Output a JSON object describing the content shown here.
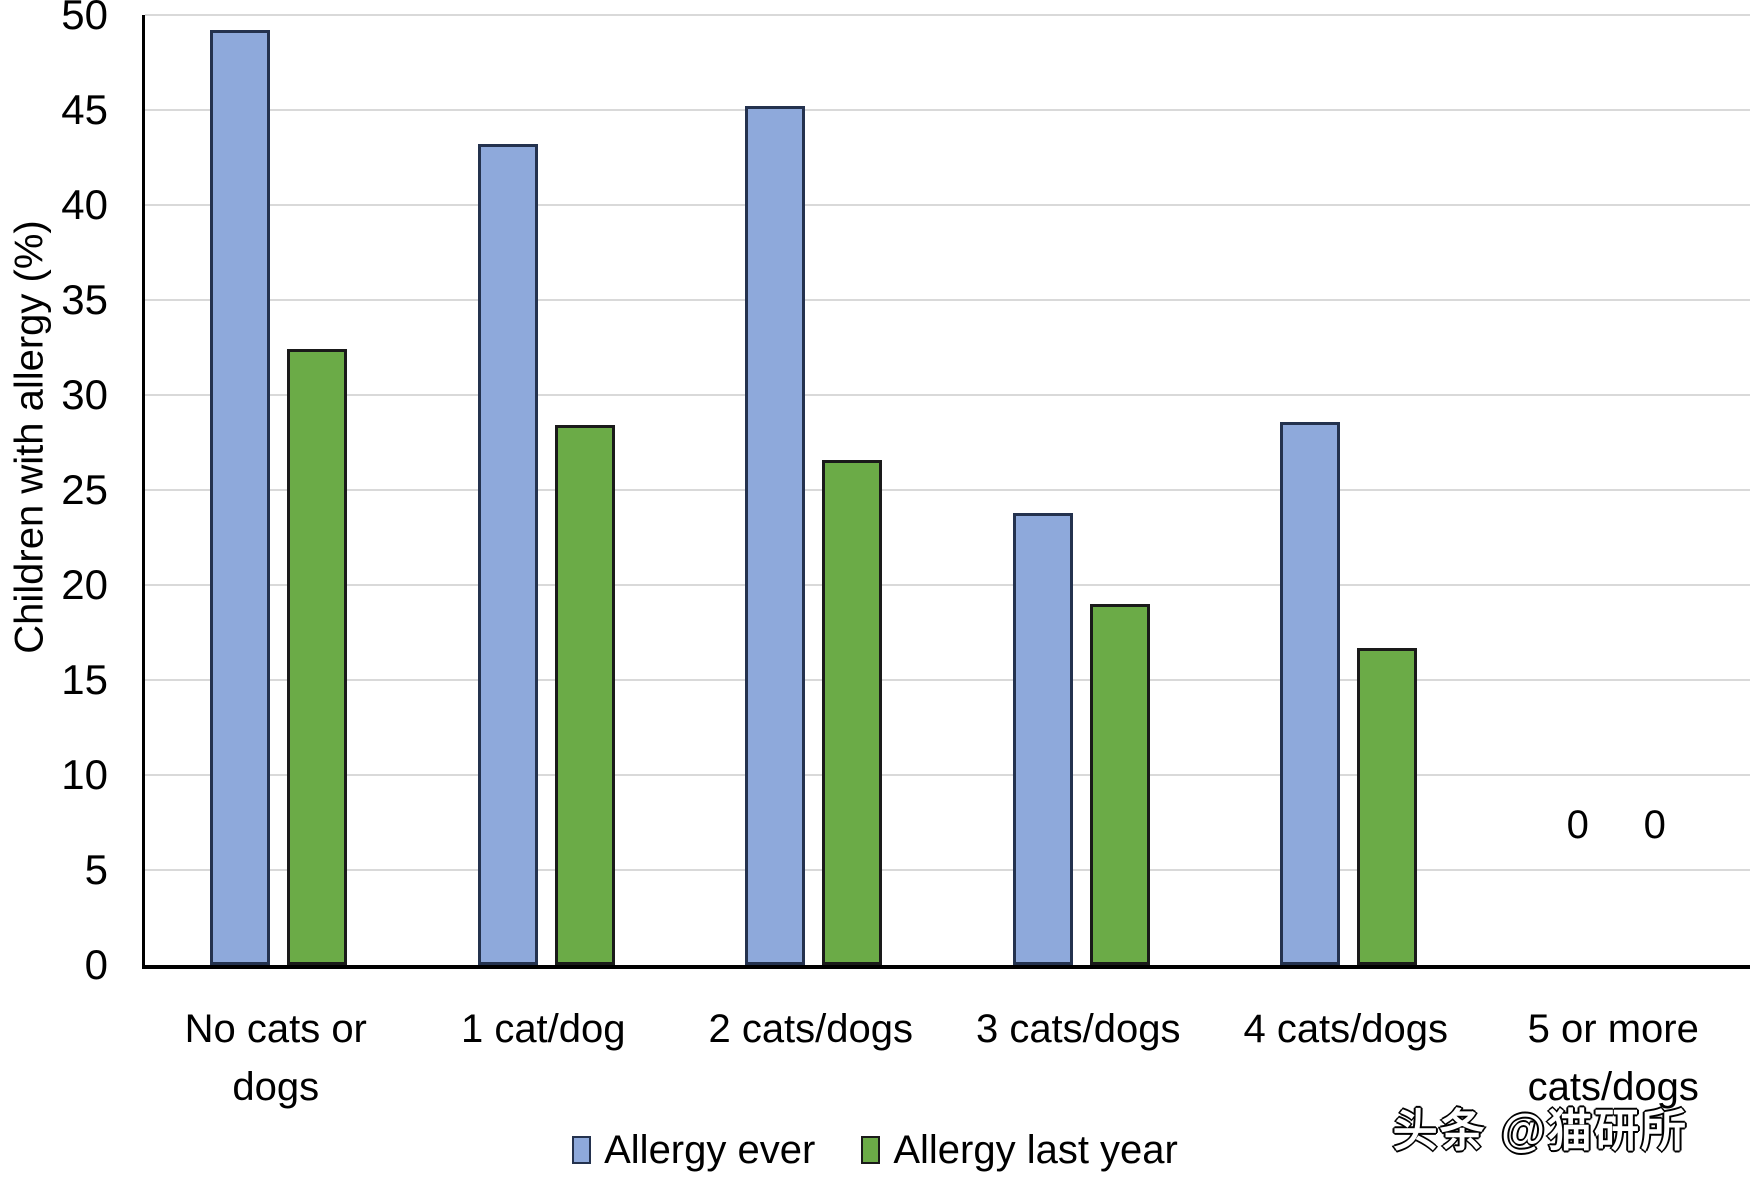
{
  "chart_data": {
    "type": "bar",
    "title": "",
    "xlabel": "",
    "ylabel": "Children with allergy (%)",
    "ylim": [
      0,
      50
    ],
    "yticks": [
      0,
      5,
      10,
      15,
      20,
      25,
      30,
      35,
      40,
      45,
      50
    ],
    "grid": true,
    "legend_position": "bottom",
    "categories": [
      "No cats or dogs",
      "1 cat/dog",
      "2 cats/dogs",
      "3 cats/dogs",
      "4 cats/dogs",
      "5 or more cats/dogs"
    ],
    "series": [
      {
        "name": "Allergy ever",
        "fill": "#8EA9DB",
        "border": "#24324E",
        "values": [
          49.2,
          43.2,
          45.2,
          23.8,
          28.6,
          0
        ]
      },
      {
        "name": "Allergy last year",
        "fill": "#6BAB47",
        "border": "#1A1A1A",
        "values": [
          32.4,
          28.4,
          26.6,
          19.0,
          16.7,
          0
        ]
      }
    ],
    "zero_value_label": "0"
  },
  "colors": {
    "axis": "#000000",
    "gridline": "#D9D9D9",
    "text": "#000000",
    "background": "#FFFFFF"
  },
  "watermark": {
    "text": "头条 @猫研所"
  }
}
